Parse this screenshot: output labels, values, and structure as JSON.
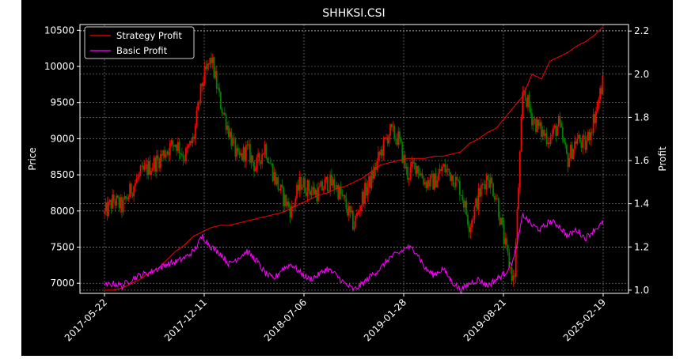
{
  "chart_data": {
    "type": "candlestick",
    "title": "SHHKSI.CSI",
    "ylabel_left": "Price",
    "ylabel_right": "Profit",
    "x_ticks": [
      "2017-05-22",
      "2017-12-11",
      "2018-07-06",
      "2019-01-28",
      "2019-08-21",
      "2025-02-19"
    ],
    "y_ticks_left": [
      7000,
      7500,
      8000,
      8500,
      9000,
      9500,
      10000,
      10500
    ],
    "y_ticks_right": [
      1.0,
      1.2,
      1.4,
      1.6,
      1.8,
      2.0,
      2.2
    ],
    "ylim_left": [
      6860,
      10580
    ],
    "ylim_right": [
      0.985,
      2.23
    ],
    "grid": true,
    "legend_position": "upper-left",
    "colors": {
      "background": "#000000",
      "up": "#ff0000",
      "down": "#008000",
      "strategy": "#ff0000",
      "basic": "#ff00ff",
      "text": "#ffffff"
    },
    "series": [
      {
        "name": "Strategy Profit",
        "color": "#ff0000",
        "axis": "right",
        "points": [
          [
            0,
            1.0
          ],
          [
            10,
            1.0
          ],
          [
            20,
            1.01
          ],
          [
            30,
            1.03
          ],
          [
            40,
            1.05
          ],
          [
            50,
            1.08
          ],
          [
            60,
            1.1
          ],
          [
            70,
            1.14
          ],
          [
            80,
            1.18
          ],
          [
            90,
            1.21
          ],
          [
            100,
            1.25
          ],
          [
            110,
            1.27
          ],
          [
            120,
            1.29
          ],
          [
            130,
            1.3
          ],
          [
            140,
            1.3
          ],
          [
            150,
            1.31
          ],
          [
            160,
            1.32
          ],
          [
            170,
            1.33
          ],
          [
            180,
            1.34
          ],
          [
            190,
            1.35
          ],
          [
            200,
            1.36
          ],
          [
            210,
            1.38
          ],
          [
            220,
            1.4
          ],
          [
            230,
            1.42
          ],
          [
            240,
            1.44
          ],
          [
            250,
            1.45
          ],
          [
            260,
            1.47
          ],
          [
            270,
            1.48
          ],
          [
            280,
            1.5
          ],
          [
            290,
            1.52
          ],
          [
            300,
            1.55
          ],
          [
            310,
            1.58
          ],
          [
            320,
            1.59
          ],
          [
            330,
            1.6
          ],
          [
            340,
            1.61
          ],
          [
            350,
            1.61
          ],
          [
            360,
            1.61
          ],
          [
            370,
            1.62
          ],
          [
            380,
            1.62
          ],
          [
            390,
            1.63
          ],
          [
            400,
            1.64
          ],
          [
            410,
            1.68
          ],
          [
            420,
            1.7
          ],
          [
            430,
            1.73
          ],
          [
            440,
            1.75
          ],
          [
            450,
            1.8
          ],
          [
            460,
            1.85
          ],
          [
            470,
            1.9
          ],
          [
            480,
            2.0
          ],
          [
            490,
            1.97
          ],
          [
            500,
            2.06
          ],
          [
            510,
            2.08
          ],
          [
            520,
            2.1
          ],
          [
            530,
            2.13
          ],
          [
            540,
            2.15
          ],
          [
            550,
            2.18
          ],
          [
            560,
            2.22
          ]
        ]
      },
      {
        "name": "Basic Profit",
        "color": "#ff00ff",
        "axis": "right",
        "points": [
          [
            0,
            1.02
          ],
          [
            10,
            1.03
          ],
          [
            20,
            1.02
          ],
          [
            30,
            1.05
          ],
          [
            40,
            1.07
          ],
          [
            50,
            1.08
          ],
          [
            60,
            1.1
          ],
          [
            70,
            1.12
          ],
          [
            80,
            1.13
          ],
          [
            90,
            1.15
          ],
          [
            100,
            1.18
          ],
          [
            110,
            1.25
          ],
          [
            120,
            1.2
          ],
          [
            130,
            1.17
          ],
          [
            140,
            1.12
          ],
          [
            150,
            1.15
          ],
          [
            160,
            1.18
          ],
          [
            170,
            1.14
          ],
          [
            180,
            1.08
          ],
          [
            190,
            1.05
          ],
          [
            200,
            1.1
          ],
          [
            210,
            1.12
          ],
          [
            220,
            1.08
          ],
          [
            230,
            1.05
          ],
          [
            240,
            1.07
          ],
          [
            250,
            1.1
          ],
          [
            260,
            1.07
          ],
          [
            270,
            1.03
          ],
          [
            280,
            1.0
          ],
          [
            290,
            1.03
          ],
          [
            300,
            1.07
          ],
          [
            310,
            1.1
          ],
          [
            320,
            1.15
          ],
          [
            330,
            1.17
          ],
          [
            340,
            1.2
          ],
          [
            350,
            1.18
          ],
          [
            360,
            1.1
          ],
          [
            370,
            1.07
          ],
          [
            380,
            1.1
          ],
          [
            390,
            1.04
          ],
          [
            400,
            1.0
          ],
          [
            410,
            1.03
          ],
          [
            420,
            1.05
          ],
          [
            430,
            1.02
          ],
          [
            440,
            1.05
          ],
          [
            450,
            1.08
          ],
          [
            460,
            1.15
          ],
          [
            470,
            1.35
          ],
          [
            480,
            1.3
          ],
          [
            490,
            1.28
          ],
          [
            500,
            1.32
          ],
          [
            510,
            1.3
          ],
          [
            520,
            1.25
          ],
          [
            530,
            1.28
          ],
          [
            540,
            1.24
          ],
          [
            550,
            1.28
          ],
          [
            560,
            1.31
          ]
        ]
      },
      {
        "name": "Price",
        "axis": "left",
        "points": [
          [
            0,
            7960
          ],
          [
            10,
            8150
          ],
          [
            20,
            8050
          ],
          [
            30,
            8300
          ],
          [
            40,
            8500
          ],
          [
            50,
            8600
          ],
          [
            60,
            8700
          ],
          [
            70,
            8850
          ],
          [
            80,
            8950
          ],
          [
            90,
            8750
          ],
          [
            100,
            9000
          ],
          [
            110,
            9800
          ],
          [
            120,
            10100
          ],
          [
            130,
            9500
          ],
          [
            140,
            9100
          ],
          [
            150,
            8700
          ],
          [
            160,
            8850
          ],
          [
            170,
            8600
          ],
          [
            180,
            8900
          ],
          [
            190,
            8500
          ],
          [
            200,
            8200
          ],
          [
            210,
            8000
          ],
          [
            220,
            8400
          ],
          [
            230,
            8300
          ],
          [
            240,
            8250
          ],
          [
            250,
            8400
          ],
          [
            260,
            8350
          ],
          [
            270,
            8100
          ],
          [
            280,
            7800
          ],
          [
            290,
            8200
          ],
          [
            300,
            8450
          ],
          [
            310,
            8800
          ],
          [
            320,
            9100
          ],
          [
            330,
            9000
          ],
          [
            340,
            8500
          ],
          [
            350,
            8650
          ],
          [
            360,
            8400
          ],
          [
            370,
            8400
          ],
          [
            380,
            8600
          ],
          [
            390,
            8500
          ],
          [
            400,
            8300
          ],
          [
            410,
            7800
          ],
          [
            420,
            8200
          ],
          [
            430,
            8500
          ],
          [
            440,
            8200
          ],
          [
            450,
            7500
          ],
          [
            460,
            7000
          ],
          [
            470,
            9700
          ],
          [
            480,
            9300
          ],
          [
            490,
            9100
          ],
          [
            500,
            9000
          ],
          [
            510,
            9200
          ],
          [
            520,
            8700
          ],
          [
            530,
            9000
          ],
          [
            540,
            8900
          ],
          [
            550,
            9300
          ],
          [
            560,
            9800
          ]
        ]
      }
    ]
  }
}
